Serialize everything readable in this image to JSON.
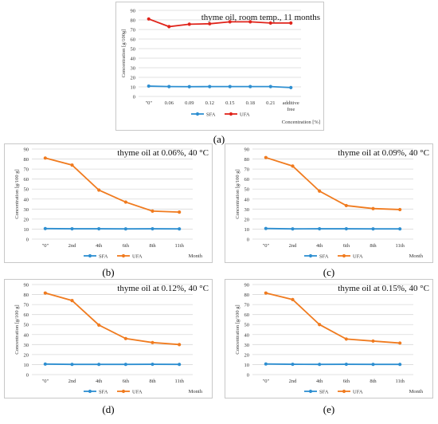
{
  "colors": {
    "SFA": "#2e8fd1",
    "UFA_a": "#e0241b",
    "UFA": "#f07b1f",
    "grid": "#d9d9d9"
  },
  "captions": [
    "(a)",
    "(b)",
    "(c)",
    "(d)",
    "(e)"
  ],
  "chart_data": [
    {
      "type": "line",
      "title": "thyme oil, room temp., 11 months",
      "ylabel": "Concentration [g/100g]",
      "xlabel": "Concentration [%]",
      "categories": [
        "\"0\"",
        "0.06",
        "0.09",
        "0.12",
        "0.15",
        "0.18",
        "0.21",
        "additive free"
      ],
      "ylim": [
        0,
        90
      ],
      "yticks": [
        0,
        10,
        20,
        30,
        40,
        50,
        60,
        70,
        80,
        90
      ],
      "series": [
        {
          "name": "SFA",
          "values": [
            10.8,
            10.3,
            10.2,
            10.3,
            10.3,
            10.3,
            10.3,
            9.3
          ]
        },
        {
          "name": "UFA",
          "values": [
            81,
            73,
            75.5,
            76,
            78,
            78,
            76.8,
            76.8
          ]
        }
      ],
      "legend": "bottom",
      "grid": true
    },
    {
      "type": "line",
      "title": "thyme oil at 0.06%, 40 °C",
      "ylabel": "Concentration [g/100 g]",
      "xlabel": "Month",
      "categories": [
        "\"0\"",
        "2nd",
        "4th",
        "6th",
        "8th",
        "11th"
      ],
      "ylim": [
        0,
        90
      ],
      "yticks": [
        0,
        10,
        20,
        30,
        40,
        50,
        60,
        70,
        80,
        90
      ],
      "series": [
        {
          "name": "SFA",
          "values": [
            10.5,
            10.3,
            10.3,
            10.2,
            10.3,
            10.2
          ]
        },
        {
          "name": "UFA",
          "values": [
            81,
            74,
            49,
            37,
            28,
            27
          ]
        }
      ],
      "legend": "bottom",
      "grid": true
    },
    {
      "type": "line",
      "title": "thyme oil at 0.09%, 40 °C",
      "ylabel": "Concentration [g/100 g]",
      "xlabel": "Month",
      "categories": [
        "\"0\"",
        "2nd",
        "4th",
        "6th",
        "8th",
        "11th"
      ],
      "ylim": [
        0,
        90
      ],
      "yticks": [
        0,
        10,
        20,
        30,
        40,
        50,
        60,
        70,
        80,
        90
      ],
      "series": [
        {
          "name": "SFA",
          "values": [
            10.6,
            10.2,
            10.3,
            10.3,
            10.2,
            10.2
          ]
        },
        {
          "name": "UFA",
          "values": [
            81.5,
            73,
            48,
            33.5,
            30.5,
            29.5
          ]
        }
      ],
      "legend": "bottom",
      "grid": true
    },
    {
      "type": "line",
      "title": "thyme oil at 0.12%, 40 °C",
      "ylabel": "Concentration [g/100 g]",
      "xlabel": "Month",
      "categories": [
        "\"0\"",
        "2nd",
        "4th",
        "6th",
        "8th",
        "11th"
      ],
      "ylim": [
        0,
        90
      ],
      "yticks": [
        0,
        10,
        20,
        30,
        40,
        50,
        60,
        70,
        80,
        90
      ],
      "series": [
        {
          "name": "SFA",
          "values": [
            10.5,
            10.2,
            10.2,
            10.2,
            10.3,
            10.2
          ]
        },
        {
          "name": "UFA",
          "values": [
            81.5,
            74,
            49.5,
            36,
            32,
            30
          ]
        }
      ],
      "legend": "bottom",
      "grid": true
    },
    {
      "type": "line",
      "title": "thyme oil at 0.15%, 40 °C",
      "ylabel": "Concentration [g/100 g]",
      "xlabel": "Month",
      "categories": [
        "\"0\"",
        "2nd",
        "4th",
        "6th",
        "8th",
        "11th"
      ],
      "ylim": [
        0,
        90
      ],
      "yticks": [
        0,
        10,
        20,
        30,
        40,
        50,
        60,
        70,
        80,
        90
      ],
      "series": [
        {
          "name": "SFA",
          "values": [
            10.6,
            10.3,
            10.2,
            10.3,
            10.2,
            10.2
          ]
        },
        {
          "name": "UFA",
          "values": [
            81.5,
            75,
            50,
            35.5,
            33.5,
            31.5
          ]
        }
      ],
      "legend": "bottom",
      "grid": true
    }
  ]
}
